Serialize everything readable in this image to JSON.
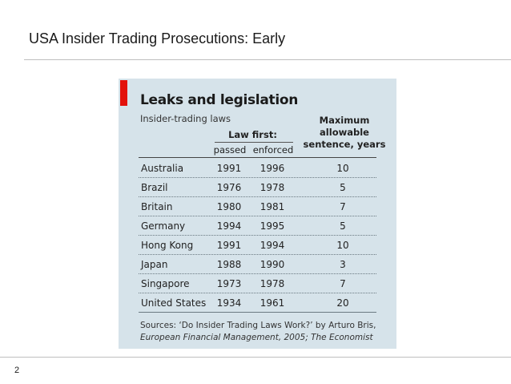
{
  "slide": {
    "title": "USA Insider Trading Prosecutions: Early",
    "page_number": "2"
  },
  "graphic": {
    "title": "Leaks and legislation",
    "subtitle": "Insider-trading laws",
    "headers": {
      "law_first": "Law first:",
      "passed": "passed",
      "enforced": "enforced",
      "max_line1": "Maximum",
      "max_line2": "allowable",
      "max_line3": "sentence, years"
    },
    "rows": [
      {
        "country": "Australia",
        "passed": "1991",
        "enforced": "1996",
        "max": "10"
      },
      {
        "country": "Brazil",
        "passed": "1976",
        "enforced": "1978",
        "max": "5"
      },
      {
        "country": "Britain",
        "passed": "1980",
        "enforced": "1981",
        "max": "7"
      },
      {
        "country": "Germany",
        "passed": "1994",
        "enforced": "1995",
        "max": "5"
      },
      {
        "country": "Hong Kong",
        "passed": "1991",
        "enforced": "1994",
        "max": "10"
      },
      {
        "country": "Japan",
        "passed": "1988",
        "enforced": "1990",
        "max": "3"
      },
      {
        "country": "Singapore",
        "passed": "1973",
        "enforced": "1978",
        "max": "7"
      },
      {
        "country": "United States",
        "passed": "1934",
        "enforced": "1961",
        "max": "20"
      }
    ],
    "sources_line1": "Sources: ‘Do Insider Trading Laws Work?’ by Arturo Bris,",
    "sources_line2": "European Financial Management, 2005; The Economist",
    "colors": {
      "accent": "#e3120b",
      "panel": "#d6e3ea"
    }
  }
}
